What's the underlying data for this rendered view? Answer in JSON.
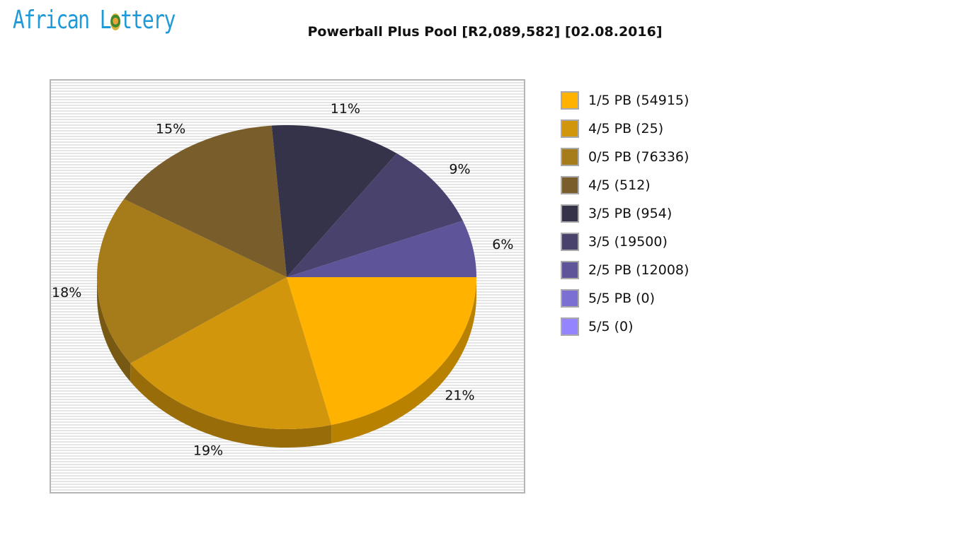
{
  "header": {
    "logo_text_before": "African L",
    "logo_text_after": "ttery",
    "title": "Powerball Plus Pool [R2,089,582] [02.08.2016]"
  },
  "chart_data": {
    "type": "pie",
    "title": "Powerball Plus Pool [R2,089,582] [02.08.2016]",
    "style": "3d",
    "legend_position": "right",
    "background": "horizontal-striped",
    "slices": [
      {
        "label": "1/5 PB (54915)",
        "percent": 21,
        "percent_label": "21%",
        "color": "#ffb300"
      },
      {
        "label": "4/5 PB (25)",
        "percent": 19,
        "percent_label": "19%",
        "color": "#d2960d"
      },
      {
        "label": "0/5 PB (76336)",
        "percent": 18,
        "percent_label": "18%",
        "color": "#a67c1a"
      },
      {
        "label": "4/5 (512)",
        "percent": 15,
        "percent_label": "15%",
        "color": "#795e2c"
      },
      {
        "label": "3/5 PB (954)",
        "percent": 11,
        "percent_label": "11%",
        "color": "#35334a"
      },
      {
        "label": "3/5 (19500)",
        "percent": 9,
        "percent_label": "9%",
        "color": "#48426d"
      },
      {
        "label": "2/5 PB (12008)",
        "percent": 6,
        "percent_label": "6%",
        "color": "#5d549a"
      },
      {
        "label": "5/5 PB (0)",
        "percent": 0,
        "percent_label": "",
        "color": "#7c6fd3"
      },
      {
        "label": "5/5 (0)",
        "percent": 0,
        "percent_label": "",
        "color": "#9485ff"
      }
    ]
  }
}
